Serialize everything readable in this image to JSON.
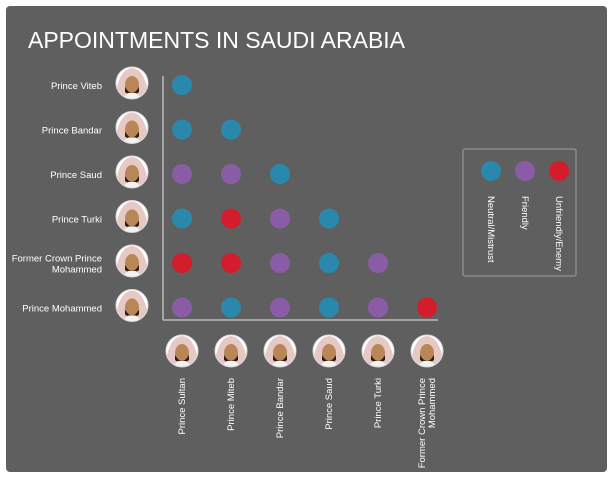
{
  "colors": {
    "background": "#5f5f5f",
    "text": "#ffffff",
    "axis": "#bcbcbc",
    "legend_border": "#8a8a8a",
    "avatar_skin": "#b88657",
    "avatar_headdress": "#e6c9c5",
    "avatar_bg": "#ffffff"
  },
  "chart_data": {
    "type": "heatmap",
    "title": "APPOINTMENTS  IN SAUDI ARABIA",
    "rows": [
      "Prince Viteb",
      "Prince Bandar",
      "Prince Saud",
      "Prince Turki",
      "Former Crown Prince Mohammed",
      "Prince Mohammed"
    ],
    "columns": [
      "Prince Sultan",
      "Prince Miteb",
      "Prince Bandar",
      "Prince Saud",
      "Prince Turki",
      "Former Crown Prince Mohammed"
    ],
    "categories": [
      {
        "key": "N",
        "label": "Neutral/Mistrust",
        "color": "#2a88ad"
      },
      {
        "key": "F",
        "label": "Friendly",
        "color": "#8b5ca6"
      },
      {
        "key": "U",
        "label": "Unfriendly/Enemy",
        "color": "#d31d2d"
      }
    ],
    "legend_position": "right",
    "cells": [
      [
        "N"
      ],
      [
        "N",
        "N"
      ],
      [
        "F",
        "F",
        "N"
      ],
      [
        "N",
        "U",
        "F",
        "N"
      ],
      [
        "U",
        "U",
        "F",
        "N",
        "F"
      ],
      [
        "F",
        "N",
        "F",
        "N",
        "F",
        "U"
      ]
    ]
  }
}
